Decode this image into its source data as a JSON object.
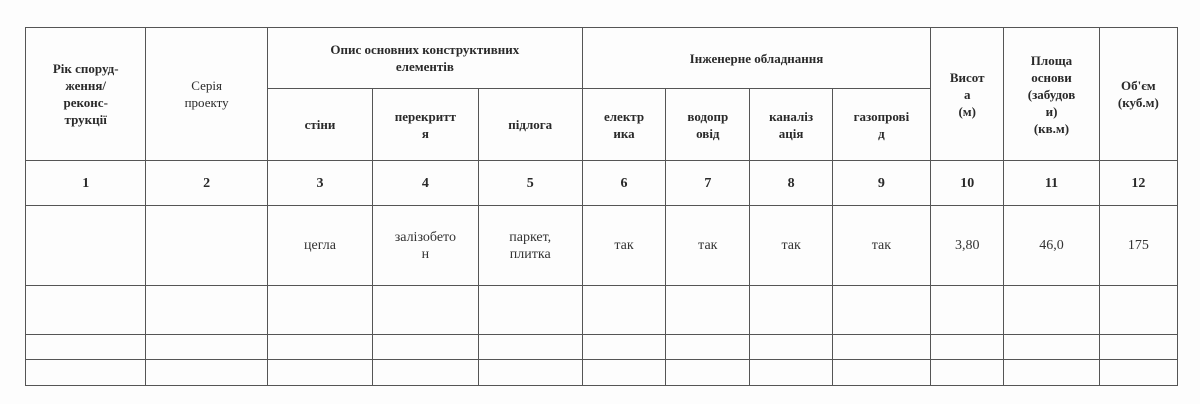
{
  "headers": {
    "year": "Рік споруд-\nження/\nреконс-\nтрукції",
    "series": "Серія\nпроекту",
    "structural_group": "Опис основних конструктивних\nелементів",
    "walls": "стіни",
    "floors_slab": "перекритт\nя",
    "flooring": "підлога",
    "engineering_group": "Інженерне обладнання",
    "electric": "електр\nика",
    "water": "водопр\nовід",
    "sewer": "каналіз\nація",
    "gas": "газопрові\nд",
    "height": "Висот\nа\n(м)",
    "area": "Площа\nоснови\n(забудов\nи)\n(кв.м)",
    "volume": "Об'єм\n(куб.м)"
  },
  "column_numbers": [
    "1",
    "2",
    "3",
    "4",
    "5",
    "6",
    "7",
    "8",
    "9",
    "10",
    "11",
    "12"
  ],
  "rows": [
    [
      "",
      "",
      "цегла",
      "залізобето\nн",
      "паркет,\nплитка",
      "так",
      "так",
      "так",
      "так",
      "3,80",
      "46,0",
      "175"
    ],
    [
      "",
      "",
      "",
      "",
      "",
      "",
      "",
      "",
      "",
      "",
      "",
      ""
    ],
    [
      "",
      "",
      "",
      "",
      "",
      "",
      "",
      "",
      "",
      "",
      "",
      ""
    ],
    [
      "",
      "",
      "",
      "",
      "",
      "",
      "",
      "",
      "",
      "",
      "",
      ""
    ]
  ]
}
